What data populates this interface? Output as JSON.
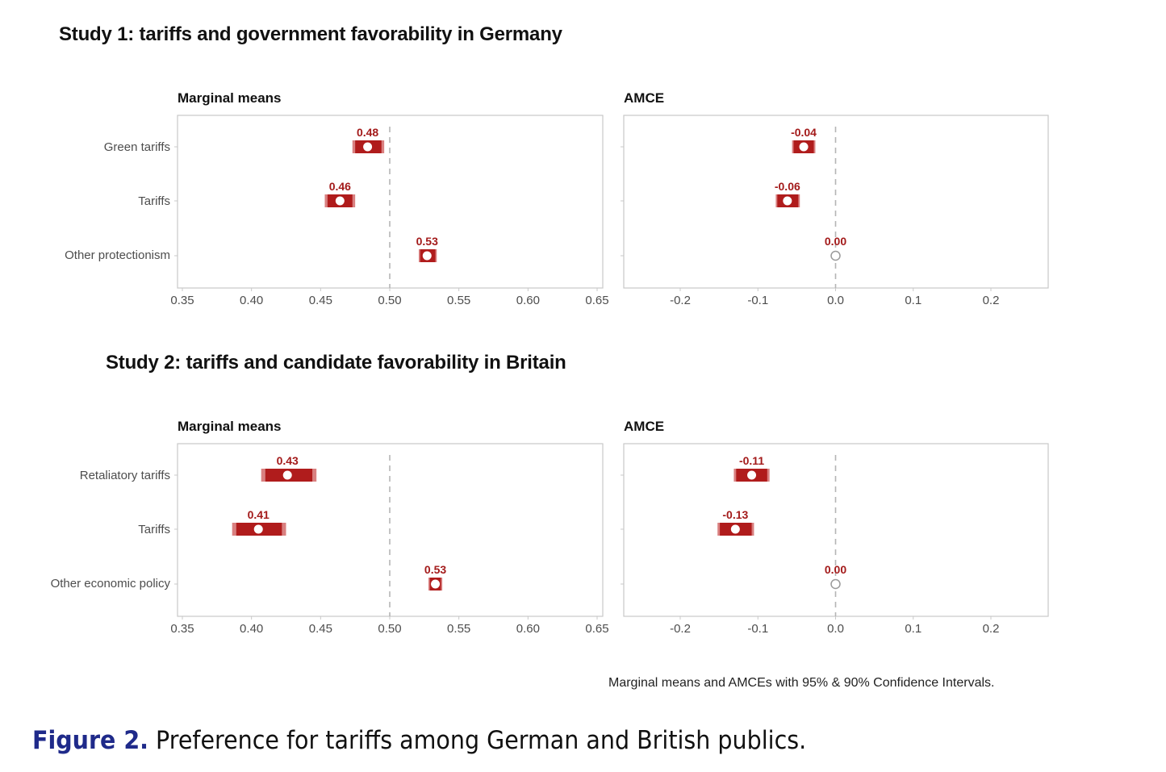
{
  "chart_data": [
    {
      "type": "scatter",
      "study": "Study 1: tariffs and government favorability in Germany",
      "title": "Marginal means",
      "categories": [
        "Green tariffs",
        "Tariffs",
        "Other protectionism"
      ],
      "xlim": [
        0.35,
        0.65
      ],
      "xticks": [
        "0.35",
        "0.40",
        "0.45",
        "0.50",
        "0.55",
        "0.60",
        "0.65"
      ],
      "reference_line": 0.5,
      "points": [
        {
          "category": "Green tariffs",
          "estimate": 0.484,
          "label": "0.48",
          "ci95": [
            0.473,
            0.496
          ],
          "ci90": [
            0.475,
            0.494
          ]
        },
        {
          "category": "Tariffs",
          "estimate": 0.464,
          "label": "0.46",
          "ci95": [
            0.453,
            0.475
          ],
          "ci90": [
            0.455,
            0.473
          ]
        },
        {
          "category": "Other protectionism",
          "estimate": 0.527,
          "label": "0.53",
          "ci95": [
            0.521,
            0.534
          ],
          "ci90": [
            0.522,
            0.533
          ]
        }
      ]
    },
    {
      "type": "scatter",
      "study": "Study 1: tariffs and government favorability in Germany",
      "title": "AMCE",
      "categories": [
        "Green tariffs",
        "Tariffs",
        "Other protectionism"
      ],
      "xlim": [
        -0.2,
        0.2
      ],
      "xticks": [
        "-0.2",
        "-0.1",
        "0.0",
        "0.1",
        "0.2"
      ],
      "reference_line": 0.0,
      "points": [
        {
          "category": "Green tariffs",
          "estimate": -0.041,
          "label": "-0.04",
          "ci95": [
            -0.056,
            -0.026
          ],
          "ci90": [
            -0.054,
            -0.028
          ]
        },
        {
          "category": "Tariffs",
          "estimate": -0.062,
          "label": "-0.06",
          "ci95": [
            -0.077,
            -0.046
          ],
          "ci90": [
            -0.075,
            -0.048
          ]
        },
        {
          "category": "Other protectionism",
          "estimate": 0.0,
          "label": "0.00",
          "reference": true
        }
      ]
    },
    {
      "type": "scatter",
      "study": "Study 2: tariffs and candidate favorability in Britain",
      "title": "Marginal means",
      "categories": [
        "Retaliatory tariffs",
        "Tariffs",
        "Other economic policy"
      ],
      "xlim": [
        0.35,
        0.65
      ],
      "xticks": [
        "0.35",
        "0.40",
        "0.45",
        "0.50",
        "0.55",
        "0.60",
        "0.65"
      ],
      "reference_line": 0.5,
      "points": [
        {
          "category": "Retaliatory tariffs",
          "estimate": 0.426,
          "label": "0.43",
          "ci95": [
            0.407,
            0.447
          ],
          "ci90": [
            0.41,
            0.444
          ]
        },
        {
          "category": "Tariffs",
          "estimate": 0.405,
          "label": "0.41",
          "ci95": [
            0.386,
            0.425
          ],
          "ci90": [
            0.389,
            0.422
          ]
        },
        {
          "category": "Other economic policy",
          "estimate": 0.533,
          "label": "0.53",
          "ci95": [
            0.528,
            0.538
          ],
          "ci90": [
            0.529,
            0.537
          ]
        }
      ]
    },
    {
      "type": "scatter",
      "study": "Study 2: tariffs and candidate favorability in Britain",
      "title": "AMCE",
      "categories": [
        "Retaliatory tariffs",
        "Tariffs",
        "Other economic policy"
      ],
      "xlim": [
        -0.2,
        0.2
      ],
      "xticks": [
        "-0.2",
        "-0.1",
        "0.0",
        "0.1",
        "0.2"
      ],
      "reference_line": 0.0,
      "points": [
        {
          "category": "Retaliatory tariffs",
          "estimate": -0.108,
          "label": "-0.11",
          "ci95": [
            -0.131,
            -0.085
          ],
          "ci90": [
            -0.128,
            -0.088
          ]
        },
        {
          "category": "Tariffs",
          "estimate": -0.129,
          "label": "-0.13",
          "ci95": [
            -0.152,
            -0.105
          ],
          "ci90": [
            -0.149,
            -0.108
          ]
        },
        {
          "category": "Other economic policy",
          "estimate": 0.0,
          "label": "0.00",
          "reference": true
        }
      ]
    }
  ],
  "titles": {
    "study1": "Study 1: tariffs and government favorability in Germany",
    "study2": "Study 2: tariffs and candidate favorability in Britain",
    "mm": "Marginal means",
    "amce": "AMCE"
  },
  "note": "Marginal means and AMCEs with 95% & 90% Confidence Intervals.",
  "caption": {
    "number": "Figure 2.",
    "text": " Preference for tariffs among German and British publics."
  },
  "colors": {
    "ci90": "#b01c1c",
    "ci95": "#d98080",
    "label": "#a31a1a",
    "reference_point": "#9a9a9a",
    "axis": "#c8c8c8",
    "refline": "#b5b5b5"
  }
}
